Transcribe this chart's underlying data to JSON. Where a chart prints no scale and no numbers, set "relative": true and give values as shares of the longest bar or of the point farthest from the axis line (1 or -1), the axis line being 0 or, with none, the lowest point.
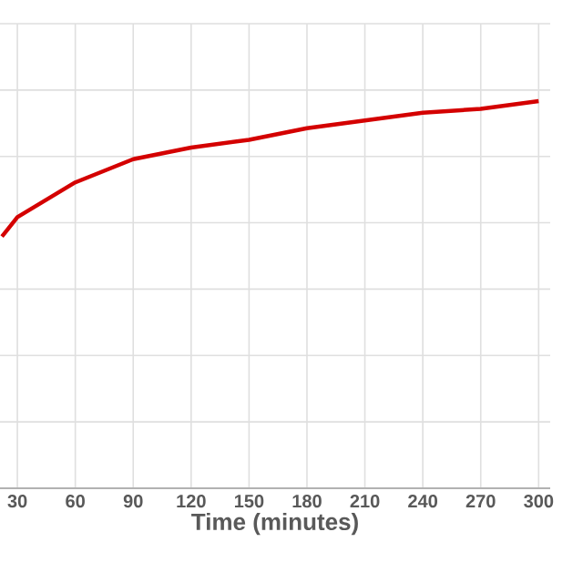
{
  "chart_data": {
    "type": "line",
    "xlabel": "Time (minutes)",
    "relative": true,
    "x": [
      22,
      30,
      60,
      90,
      120,
      150,
      180,
      210,
      240,
      270,
      300
    ],
    "series": [
      {
        "color": "#d40000",
        "values": [
          0.65,
          0.7,
          0.79,
          0.85,
          0.88,
          0.9,
          0.93,
          0.95,
          0.97,
          0.98,
          1.0
        ]
      }
    ],
    "xlim": [
      21,
      306
    ],
    "xticks": [
      30,
      60,
      90,
      120,
      150,
      180,
      210,
      240,
      270,
      300
    ],
    "grid": true,
    "tick_labels": "x",
    "marker": "none",
    "line_style": "solid"
  }
}
